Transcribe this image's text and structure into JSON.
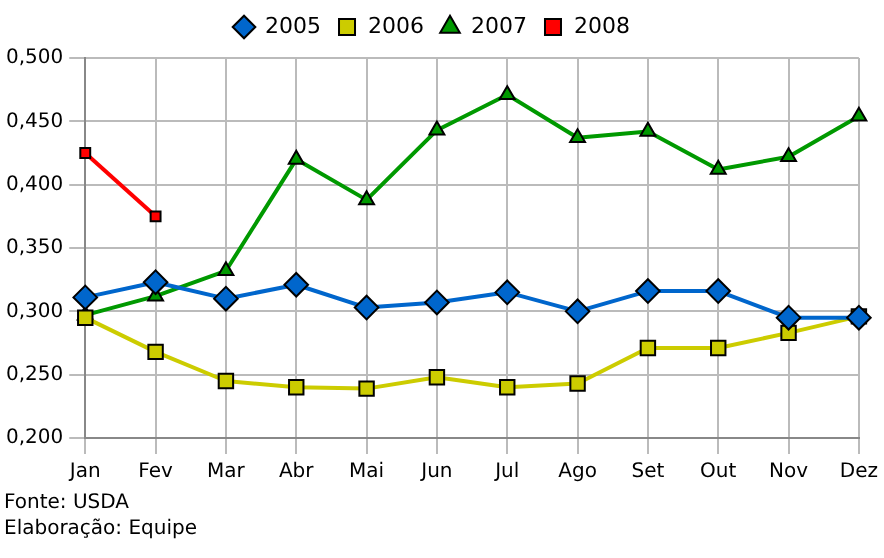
{
  "chart_data": {
    "type": "line",
    "categories": [
      "Jan",
      "Fev",
      "Mar",
      "Abr",
      "Mai",
      "Jun",
      "Jul",
      "Ago",
      "Set",
      "Out",
      "Nov",
      "Dez"
    ],
    "series": [
      {
        "name": "2005",
        "color": "#0066cc",
        "marker": "diamond",
        "values": [
          0.311,
          0.323,
          0.31,
          0.321,
          0.303,
          0.307,
          0.315,
          0.3,
          0.316,
          0.316,
          0.295,
          0.295
        ]
      },
      {
        "name": "2006",
        "color": "#cccc00",
        "marker": "square",
        "values": [
          0.295,
          0.268,
          0.245,
          0.24,
          0.239,
          0.248,
          0.24,
          0.243,
          0.271,
          0.271,
          0.283,
          0.296
        ]
      },
      {
        "name": "2007",
        "color": "#009900",
        "marker": "triangle",
        "values": [
          0.297,
          0.312,
          0.332,
          0.42,
          0.388,
          0.443,
          0.471,
          0.437,
          0.442,
          0.412,
          0.422,
          0.454
        ]
      },
      {
        "name": "2008",
        "color": "#ff0000",
        "marker": "square",
        "values": [
          0.425,
          0.375,
          null,
          null,
          null,
          null,
          null,
          null,
          null,
          null,
          null,
          null
        ]
      }
    ],
    "ylim": [
      0.2,
      0.5
    ],
    "yticks": [
      {
        "value": 0.2,
        "label": "0,200"
      },
      {
        "value": 0.25,
        "label": "0,250"
      },
      {
        "value": 0.3,
        "label": "0,300"
      },
      {
        "value": 0.35,
        "label": "0,350"
      },
      {
        "value": 0.4,
        "label": "0,400"
      },
      {
        "value": 0.45,
        "label": "0,450"
      },
      {
        "value": 0.5,
        "label": "0,500"
      }
    ],
    "grid": true,
    "legend": "top",
    "line_style": "solid",
    "annotations": [
      "Fonte: USDA",
      "Elaboração: Equipe"
    ]
  }
}
